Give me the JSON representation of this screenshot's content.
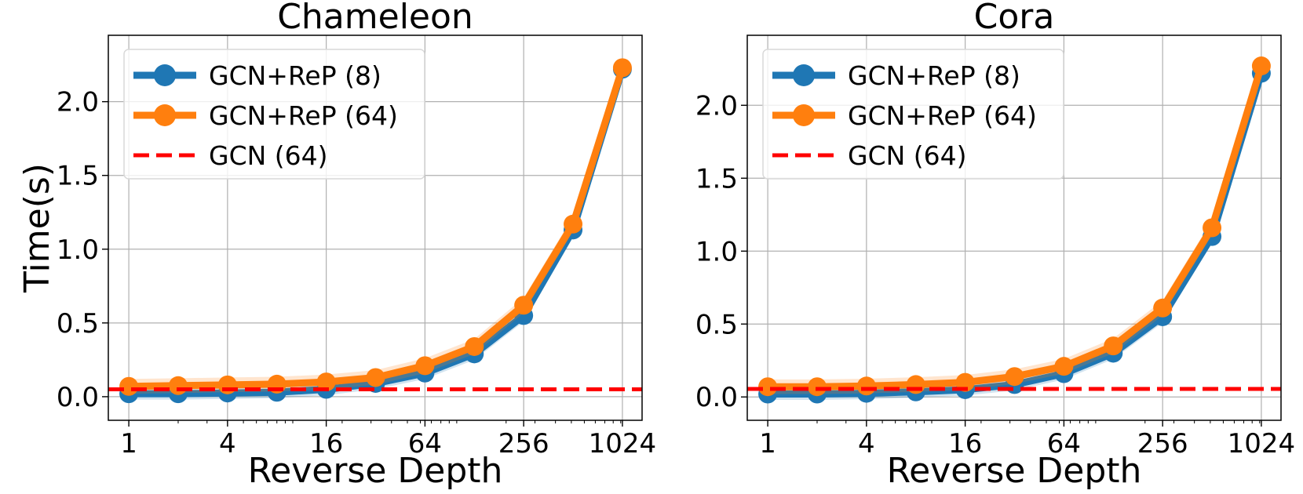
{
  "chart_data": [
    {
      "type": "line",
      "title": "Chameleon",
      "xlabel": "Reverse Depth",
      "ylabel": "Time(s)",
      "xscale": "log2",
      "xlim": [
        0.75,
        1350
      ],
      "ylim": [
        -0.16,
        2.45
      ],
      "xticks": [
        1,
        4,
        16,
        64,
        256,
        1024
      ],
      "xtick_labels": [
        "1",
        "4",
        "16",
        "64",
        "256",
        "1024"
      ],
      "yticks": [
        0.0,
        0.5,
        1.0,
        1.5,
        2.0
      ],
      "ytick_labels": [
        "0.0",
        "0.5",
        "1.0",
        "1.5",
        "2.0"
      ],
      "grid": true,
      "legend_position": "top-left",
      "x": [
        1,
        2,
        4,
        8,
        16,
        32,
        64,
        128,
        256,
        512,
        1024
      ],
      "series": [
        {
          "name": "GCN+ReP (8)",
          "color": "#1f77b4",
          "values": [
            0.02,
            0.02,
            0.025,
            0.03,
            0.05,
            0.09,
            0.16,
            0.29,
            0.55,
            1.13,
            2.22
          ],
          "band": 0.04
        },
        {
          "name": "GCN+ReP (64)",
          "color": "#ff7f0e",
          "values": [
            0.07,
            0.075,
            0.08,
            0.085,
            0.1,
            0.13,
            0.21,
            0.34,
            0.62,
            1.17,
            2.23
          ],
          "band": 0.05
        },
        {
          "name": "GCN (64)",
          "color": "#ff0000",
          "style": "dashed",
          "constant": 0.05
        }
      ]
    },
    {
      "type": "line",
      "title": "Cora",
      "xlabel": "Reverse Depth",
      "ylabel": "",
      "xscale": "log2",
      "xlim": [
        0.75,
        1350
      ],
      "ylim": [
        -0.16,
        2.48
      ],
      "xticks": [
        1,
        4,
        16,
        64,
        256,
        1024
      ],
      "xtick_labels": [
        "1",
        "4",
        "16",
        "64",
        "256",
        "1024"
      ],
      "yticks": [
        0.0,
        0.5,
        1.0,
        1.5,
        2.0
      ],
      "ytick_labels": [
        "0.0",
        "0.5",
        "1.0",
        "1.5",
        "2.0"
      ],
      "grid": true,
      "legend_position": "top-left",
      "x": [
        1,
        2,
        4,
        8,
        16,
        32,
        64,
        128,
        256,
        512,
        1024
      ],
      "series": [
        {
          "name": "GCN+ReP (8)",
          "color": "#1f77b4",
          "values": [
            0.02,
            0.02,
            0.025,
            0.035,
            0.05,
            0.085,
            0.16,
            0.3,
            0.55,
            1.1,
            2.22
          ],
          "band": 0.04
        },
        {
          "name": "GCN+ReP (64)",
          "color": "#ff7f0e",
          "values": [
            0.07,
            0.07,
            0.075,
            0.085,
            0.1,
            0.14,
            0.21,
            0.35,
            0.61,
            1.16,
            2.27
          ],
          "band": 0.05
        },
        {
          "name": "GCN (64)",
          "color": "#ff0000",
          "style": "dashed",
          "constant": 0.055
        }
      ]
    }
  ]
}
